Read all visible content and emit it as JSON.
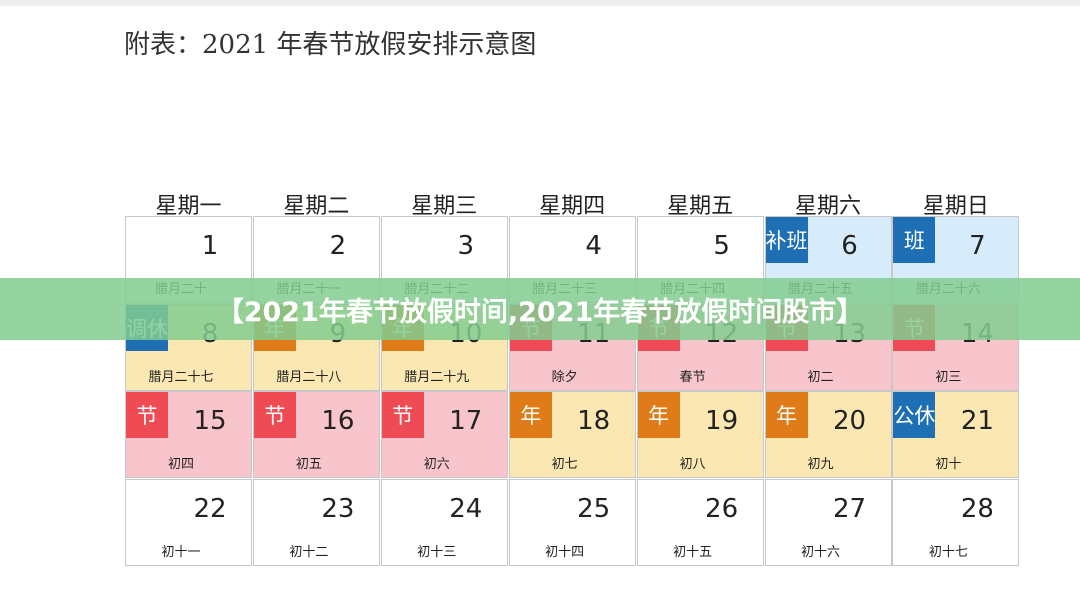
{
  "title": "附表：2021 年春节放假安排示意图",
  "banner": "【2021年春节放假时间,2021年春节放假时间股市】",
  "weekdays": [
    "星期一",
    "星期二",
    "星期三",
    "星期四",
    "星期五",
    "星期六",
    "星期日"
  ],
  "weeks": [
    [
      {
        "day": 1,
        "lunar": "腊月二十",
        "bg": "#ffffff"
      },
      {
        "day": 2,
        "lunar": "腊月二十一",
        "bg": "#ffffff"
      },
      {
        "day": 3,
        "lunar": "腊月二十二",
        "bg": "#ffffff"
      },
      {
        "day": 4,
        "lunar": "腊月二十三",
        "bg": "#ffffff"
      },
      {
        "day": 5,
        "lunar": "腊月二十四",
        "bg": "#ffffff"
      },
      {
        "day": 6,
        "lunar": "腊月二十五",
        "bg": "#d6ecfb",
        "tag": "补班",
        "tag_color": "#1f6fb5"
      },
      {
        "day": 7,
        "lunar": "腊月二十六",
        "bg": "#d6ecfb",
        "tag": "班",
        "tag_color": "#1f6fb5"
      }
    ],
    [
      {
        "day": 8,
        "lunar": "腊月二十七",
        "bg": "#fbe7b1",
        "tag": "调休",
        "tag_color": "#1f6fb5"
      },
      {
        "day": 9,
        "lunar": "腊月二十八",
        "bg": "#fbe7b1",
        "tag": "年",
        "tag_color": "#e07b1a"
      },
      {
        "day": 10,
        "lunar": "腊月二十九",
        "bg": "#fbe7b1",
        "tag": "年",
        "tag_color": "#e07b1a"
      },
      {
        "day": 11,
        "lunar": "除夕",
        "bg": "#f9c5cc",
        "tag": "节",
        "tag_color": "#ee4b55"
      },
      {
        "day": 12,
        "lunar": "春节",
        "bg": "#f9c5cc",
        "tag": "节",
        "tag_color": "#ee4b55"
      },
      {
        "day": 13,
        "lunar": "初二",
        "bg": "#f9c5cc",
        "tag": "节",
        "tag_color": "#ee4b55"
      },
      {
        "day": 14,
        "lunar": "初三",
        "bg": "#f9c5cc",
        "tag": "节",
        "tag_color": "#ee4b55"
      }
    ],
    [
      {
        "day": 15,
        "lunar": "初四",
        "bg": "#f9c5cc",
        "tag": "节",
        "tag_color": "#ee4b55"
      },
      {
        "day": 16,
        "lunar": "初五",
        "bg": "#f9c5cc",
        "tag": "节",
        "tag_color": "#ee4b55"
      },
      {
        "day": 17,
        "lunar": "初六",
        "bg": "#f9c5cc",
        "tag": "节",
        "tag_color": "#ee4b55"
      },
      {
        "day": 18,
        "lunar": "初七",
        "bg": "#fbe7b1",
        "tag": "年",
        "tag_color": "#e07b1a"
      },
      {
        "day": 19,
        "lunar": "初八",
        "bg": "#fbe7b1",
        "tag": "年",
        "tag_color": "#e07b1a"
      },
      {
        "day": 20,
        "lunar": "初九",
        "bg": "#fbe7b1",
        "tag": "年",
        "tag_color": "#e07b1a"
      },
      {
        "day": 21,
        "lunar": "初十",
        "bg": "#fbe7b1",
        "tag": "公休",
        "tag_color": "#1f6fb5"
      }
    ],
    [
      {
        "day": 22,
        "lunar": "初十一",
        "bg": "#ffffff"
      },
      {
        "day": 23,
        "lunar": "初十二",
        "bg": "#ffffff"
      },
      {
        "day": 24,
        "lunar": "初十三",
        "bg": "#ffffff"
      },
      {
        "day": 25,
        "lunar": "初十四",
        "bg": "#ffffff"
      },
      {
        "day": 26,
        "lunar": "初十五",
        "bg": "#ffffff"
      },
      {
        "day": 27,
        "lunar": "初十六",
        "bg": "#ffffff"
      },
      {
        "day": 28,
        "lunar": "初十七",
        "bg": "#ffffff"
      }
    ]
  ]
}
